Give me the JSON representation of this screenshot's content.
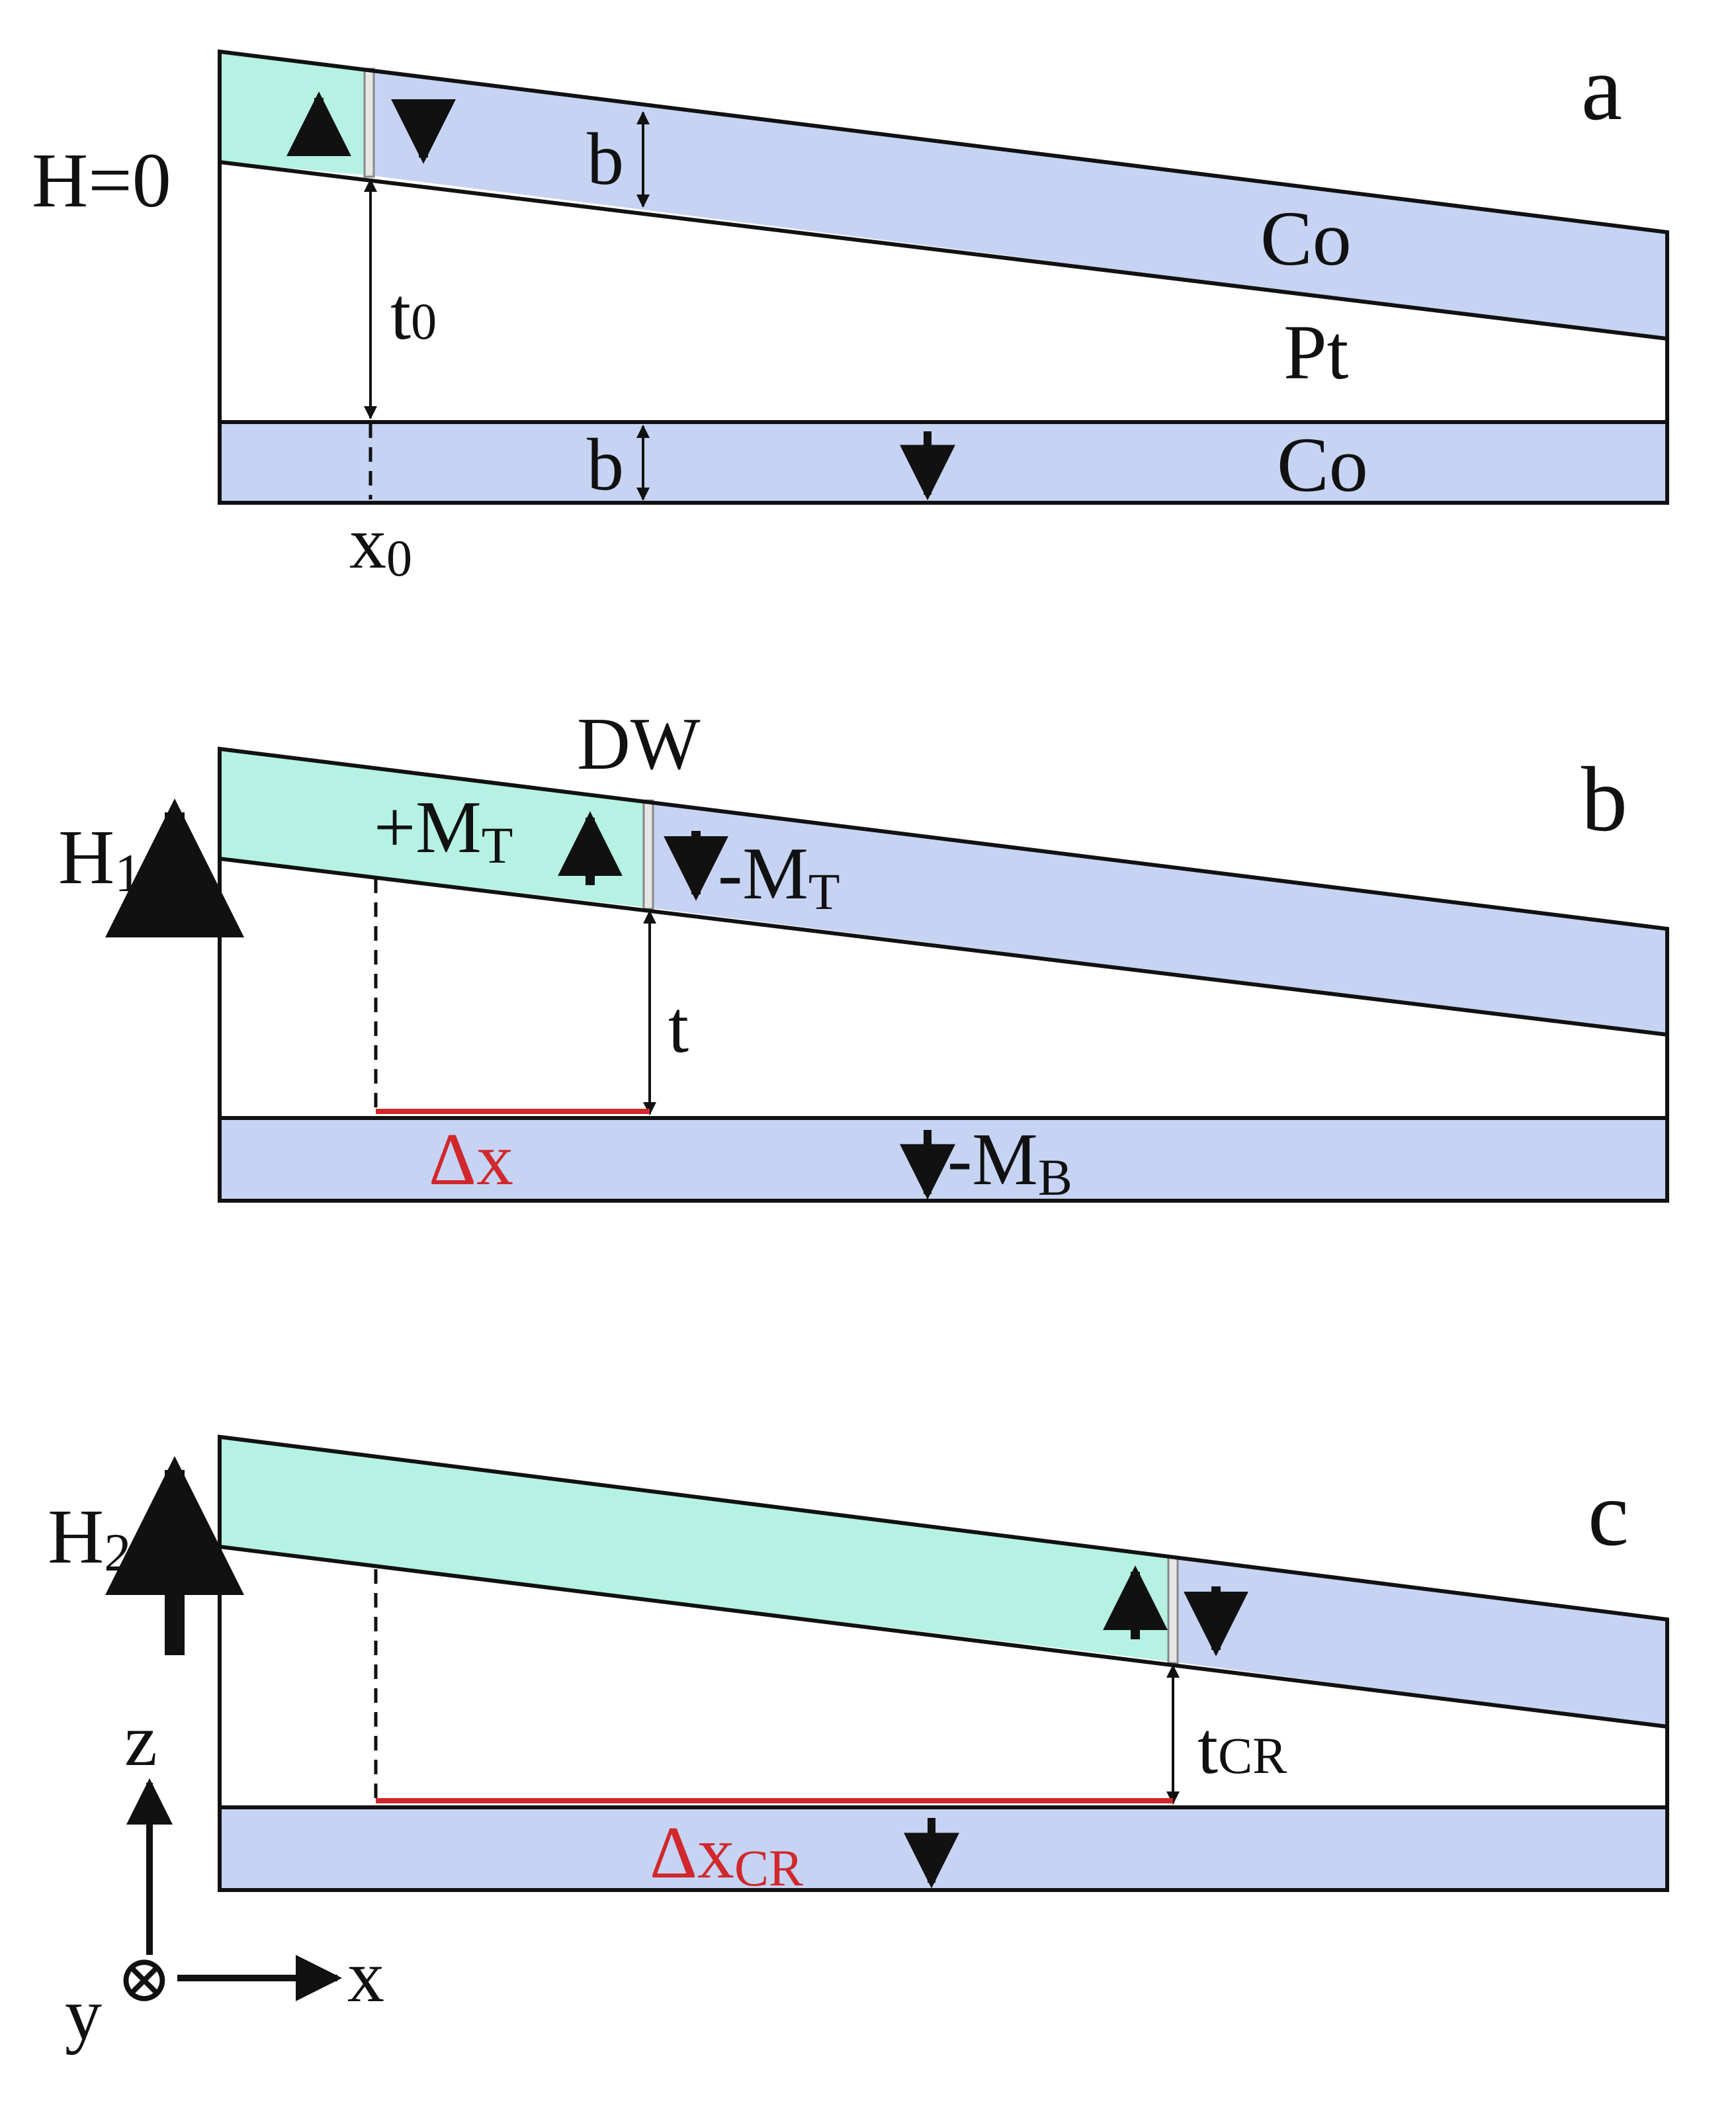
{
  "colors": {
    "magnetization_up_layer": "#b5f2e3",
    "magnetization_down_layer": "#c6d3f3",
    "displacement": "#d0282c",
    "outline": "#111111"
  },
  "panels": {
    "a": {
      "label": "a",
      "field": "H=0",
      "thickness_top": "b",
      "gap": "t",
      "gap_sub": "0",
      "material_top": "Co",
      "spacer": "Pt",
      "thickness_bottom": "b",
      "material_bottom": "Co",
      "position": "x",
      "position_sub": "0"
    },
    "b": {
      "label": "b",
      "domain_wall": "DW",
      "field": "H",
      "field_sub": "1",
      "mag_up": "+M",
      "mag_up_sub": "T",
      "mag_down": "-M",
      "mag_down_sub": "T",
      "gap": "t",
      "shift": "Δx",
      "mag_bottom": "-M",
      "mag_bottom_sub": "B"
    },
    "c": {
      "label": "c",
      "field": "H",
      "field_sub": "2",
      "gap": "t",
      "gap_sub": "CR",
      "shift": "Δx",
      "shift_sub": "CR"
    }
  },
  "axes": {
    "z": "z",
    "x": "x",
    "y": "y",
    "y_symbol": "⊗"
  }
}
